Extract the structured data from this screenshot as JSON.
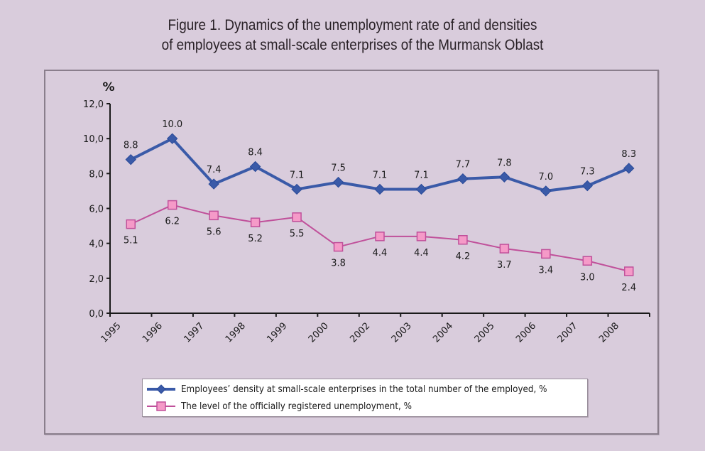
{
  "title": {
    "line1": "Figure 1. Dynamics of the unemployment rate of and densities",
    "line2": "of employees at small-scale enterprises of the Murmansk Oblast"
  },
  "chart_data": {
    "type": "line",
    "title": "Figure 1. Dynamics of the unemployment rate of and densities of employees at small-scale enterprises of the Murmansk Oblast",
    "xlabel": "",
    "ylabel": "%",
    "categories": [
      "1995",
      "1996",
      "1997",
      "1998",
      "1999",
      "2000",
      "2002",
      "2003",
      "2004",
      "2005",
      "2006",
      "2007",
      "2008"
    ],
    "ylim": [
      0,
      12
    ],
    "yticks": [
      "0,0",
      "2,0",
      "4,0",
      "6,0",
      "8,0",
      "10,0",
      "12,0"
    ],
    "grid": false,
    "legend_position": "bottom",
    "series": [
      {
        "name": "Employees’ density at small-scale enterprises in the total number of the employed, %",
        "color": "#3a5aa8",
        "marker": "diamond",
        "values": [
          8.8,
          10.0,
          7.4,
          8.4,
          7.1,
          7.5,
          7.1,
          7.1,
          7.7,
          7.8,
          7.0,
          7.3,
          8.3
        ],
        "labels": [
          "8.8",
          "10.0",
          "7.4",
          "8.4",
          "7.1",
          "7.5",
          "7.1",
          "7.1",
          "7.7",
          "7.8",
          "7.0",
          "7.3",
          "8.3"
        ],
        "label_position": "above"
      },
      {
        "name": "The level of the officially registered unemployment, %",
        "color": "#c0509a",
        "marker_fill": "#f59ac8",
        "marker": "square",
        "values": [
          5.1,
          6.2,
          5.6,
          5.2,
          5.5,
          3.8,
          4.4,
          4.4,
          4.2,
          3.7,
          3.4,
          3.0,
          2.4
        ],
        "labels": [
          "5.1",
          "6.2",
          "5.6",
          "5.2",
          "5.5",
          "3.8",
          "4.4",
          "4.4",
          "4.2",
          "3.7",
          "3.4",
          "3.0",
          "2.4"
        ],
        "label_position": "below"
      }
    ]
  }
}
